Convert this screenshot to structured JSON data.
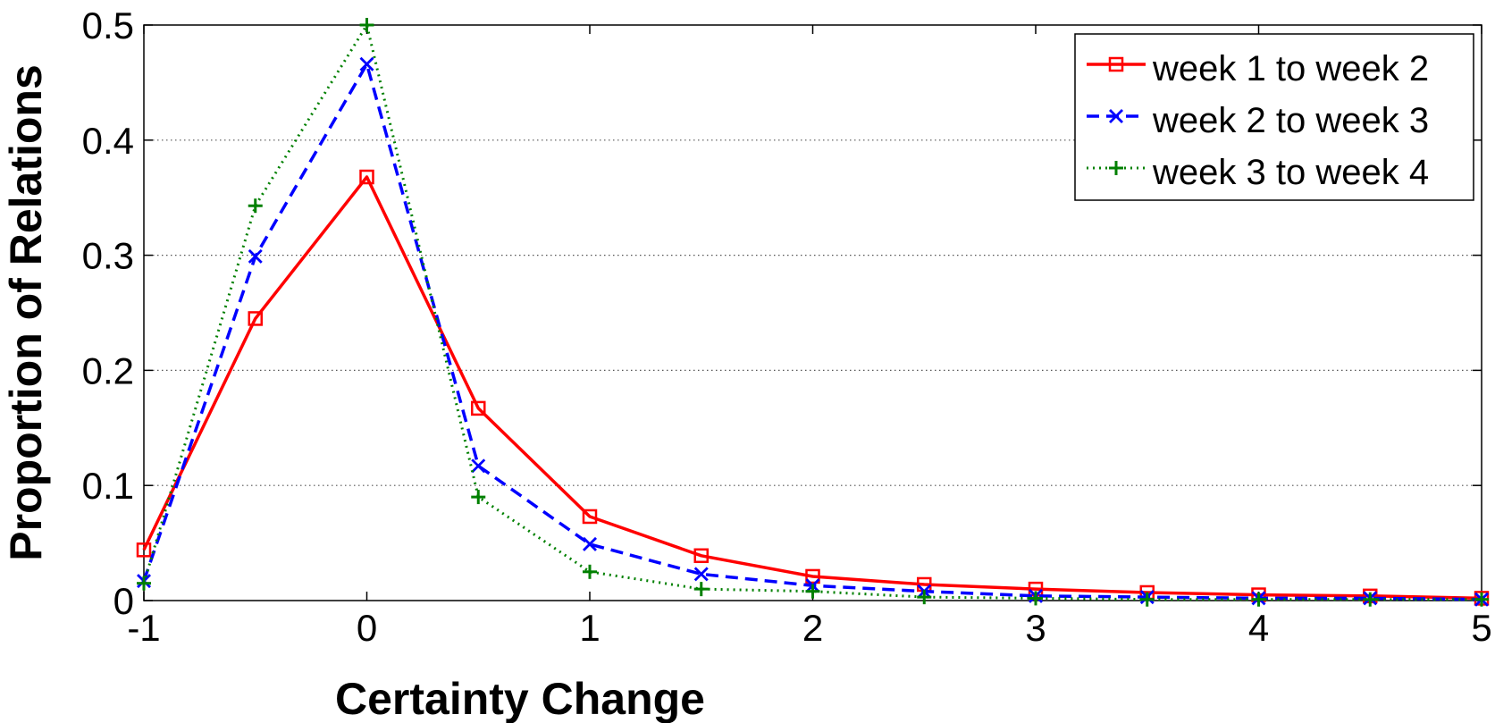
{
  "chart_data": {
    "type": "line",
    "title": "",
    "xlabel": "Certainty Change",
    "ylabel": "Proportion of Relations",
    "xlim": [
      -1,
      5
    ],
    "ylim": [
      0,
      0.5
    ],
    "xticks": [
      -1,
      0,
      1,
      2,
      3,
      4,
      5
    ],
    "xtick_labels": [
      "-1",
      "0",
      "1",
      "2",
      "3",
      "4",
      "5"
    ],
    "yticks": [
      0,
      0.1,
      0.2,
      0.3,
      0.4,
      0.5
    ],
    "ytick_labels": [
      "0",
      "0.1",
      "0.2",
      "0.3",
      "0.4",
      "0.5"
    ],
    "grid": "horizontal dotted",
    "legend_position": "top-right",
    "x": [
      -1,
      -0.5,
      0,
      0.5,
      1,
      1.5,
      2,
      2.5,
      3,
      3.5,
      4,
      4.5,
      5
    ],
    "series": [
      {
        "name": "week 1 to week 2",
        "color": "#ff0000",
        "line_style": "solid",
        "marker": "square",
        "values": [
          0.044,
          0.245,
          0.368,
          0.167,
          0.073,
          0.039,
          0.021,
          0.014,
          0.01,
          0.007,
          0.005,
          0.004,
          0.002
        ]
      },
      {
        "name": "week 2 to week 3",
        "color": "#0000ff",
        "line_style": "dashed",
        "marker": "x",
        "values": [
          0.017,
          0.299,
          0.466,
          0.117,
          0.049,
          0.023,
          0.013,
          0.008,
          0.004,
          0.003,
          0.002,
          0.002,
          0.001
        ]
      },
      {
        "name": "week 3 to week 4",
        "color": "#008000",
        "line_style": "dotted",
        "marker": "plus",
        "values": [
          0.015,
          0.343,
          0.5,
          0.09,
          0.025,
          0.01,
          0.008,
          0.003,
          0.002,
          0.001,
          0.001,
          0.001,
          0.001
        ]
      }
    ]
  }
}
